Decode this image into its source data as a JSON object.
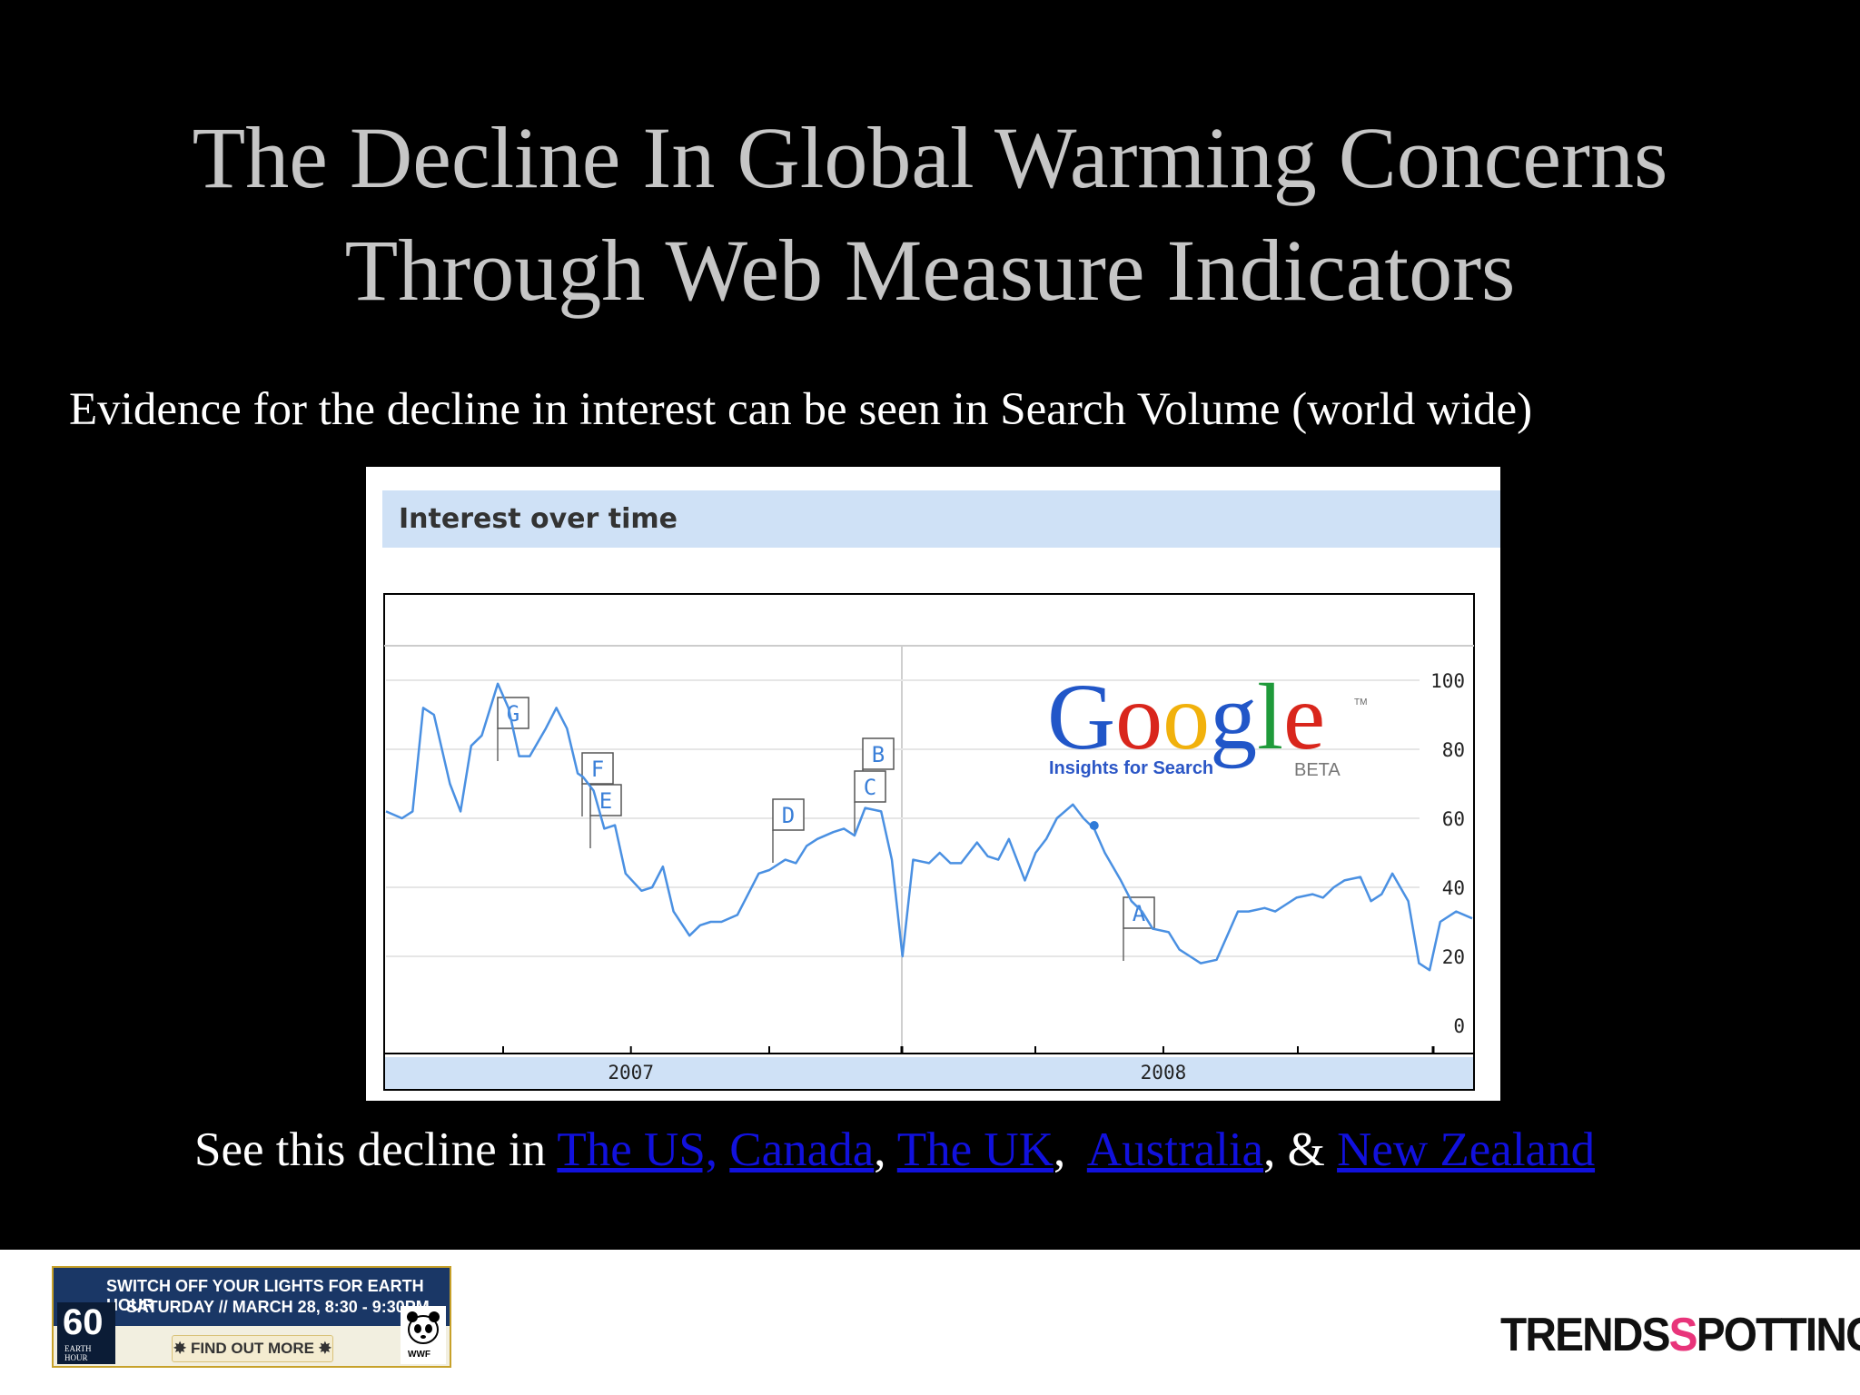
{
  "slide": {
    "title_line1": "The Decline In Global Warming Concerns",
    "title_line2": "Through Web Measure Indicators",
    "subtitle": "Evidence for the decline in interest can be  seen in Search Volume (world wide)",
    "bottom_prefix": "See this decline in ",
    "links": [
      {
        "label": "The US,"
      },
      {
        "label": "Canada"
      },
      {
        "label": "The UK"
      },
      {
        "label": "Australia"
      },
      {
        "label": "New Zealand"
      }
    ],
    "sep_comma": ",",
    "sep_amp": ",  & "
  },
  "chart_data": {
    "type": "line",
    "title": "Interest over time",
    "line_color": "#4a90e2",
    "ylim": [
      0,
      100
    ],
    "y_ticks": [
      0,
      20,
      40,
      60,
      80,
      100
    ],
    "x_ticks": [
      {
        "label": "2007",
        "x": 2007.0
      },
      {
        "label": "2008",
        "x": 2008.0
      }
    ],
    "xlim": [
      2006.54,
      2008.58
    ],
    "x": [
      2006.54,
      2006.57,
      2006.59,
      2006.61,
      2006.63,
      2006.66,
      2006.68,
      2006.7,
      2006.72,
      2006.75,
      2006.77,
      2006.79,
      2006.81,
      2006.84,
      2006.86,
      2006.88,
      2006.9,
      2006.91,
      2006.93,
      2006.95,
      2006.97,
      2006.99,
      2007.02,
      2007.04,
      2007.06,
      2007.08,
      2007.11,
      2007.13,
      2007.15,
      2007.17,
      2007.2,
      2007.22,
      2007.24,
      2007.26,
      2007.29,
      2007.31,
      2007.33,
      2007.35,
      2007.38,
      2007.4,
      2007.42,
      2007.44,
      2007.47,
      2007.49,
      2007.51,
      2007.53,
      2007.56,
      2007.58,
      2007.6,
      2007.62,
      2007.65,
      2007.67,
      2007.69,
      2007.71,
      2007.74,
      2007.76,
      2007.78,
      2007.8,
      2007.83,
      2007.85,
      2007.87,
      2007.89,
      2007.92,
      2007.94,
      2007.96,
      2007.98,
      2008.01,
      2008.03,
      2008.05,
      2008.07,
      2008.1,
      2008.12,
      2008.14,
      2008.16,
      2008.19,
      2008.21,
      2008.23,
      2008.25,
      2008.28,
      2008.3,
      2008.32,
      2008.34,
      2008.37,
      2008.39,
      2008.41,
      2008.43,
      2008.46,
      2008.48,
      2008.5,
      2008.52,
      2008.55,
      2008.58
    ],
    "y": [
      62,
      60,
      62,
      92,
      90,
      70,
      62,
      81,
      84,
      99,
      92,
      78,
      78,
      86,
      92,
      86,
      73,
      72,
      68,
      57,
      58,
      44,
      39,
      40,
      46,
      33,
      26,
      29,
      30,
      30,
      32,
      38,
      44,
      45,
      48,
      47,
      52,
      54,
      56,
      57,
      55,
      63,
      62,
      48,
      20,
      48,
      47,
      50,
      47,
      47,
      53,
      49,
      48,
      54,
      42,
      50,
      54,
      60,
      64,
      60,
      57,
      50,
      42,
      36,
      33,
      28,
      27,
      22,
      20,
      18,
      19,
      26,
      33,
      33,
      34,
      33,
      35,
      37,
      38,
      37,
      40,
      42,
      43,
      36,
      38,
      44,
      36,
      18,
      16,
      30,
      33,
      31
    ],
    "annotations": [
      {
        "label": "G"
      },
      {
        "label": "F"
      },
      {
        "label": "E"
      },
      {
        "label": "D"
      },
      {
        "label": "B"
      },
      {
        "label": "C"
      },
      {
        "label": "A"
      }
    ],
    "logo": {
      "word": "Google",
      "tagline": "Insights for Search",
      "beta": "BETA",
      "tm": "TM"
    }
  },
  "footer": {
    "banner_line1": "SWITCH OFF YOUR LIGHTS FOR EARTH HOUR",
    "banner_line2": "SATURDAY // MARCH 28, 8:30 - 9:30PM",
    "banner_badge": "60",
    "banner_badge_label": "EARTH HOUR",
    "banner_button": "✸ FIND OUT MORE ✸",
    "wwf": "WWF",
    "brand_left": "TRENDS",
    "brand_mid": "S",
    "brand_right": "POTTING"
  }
}
